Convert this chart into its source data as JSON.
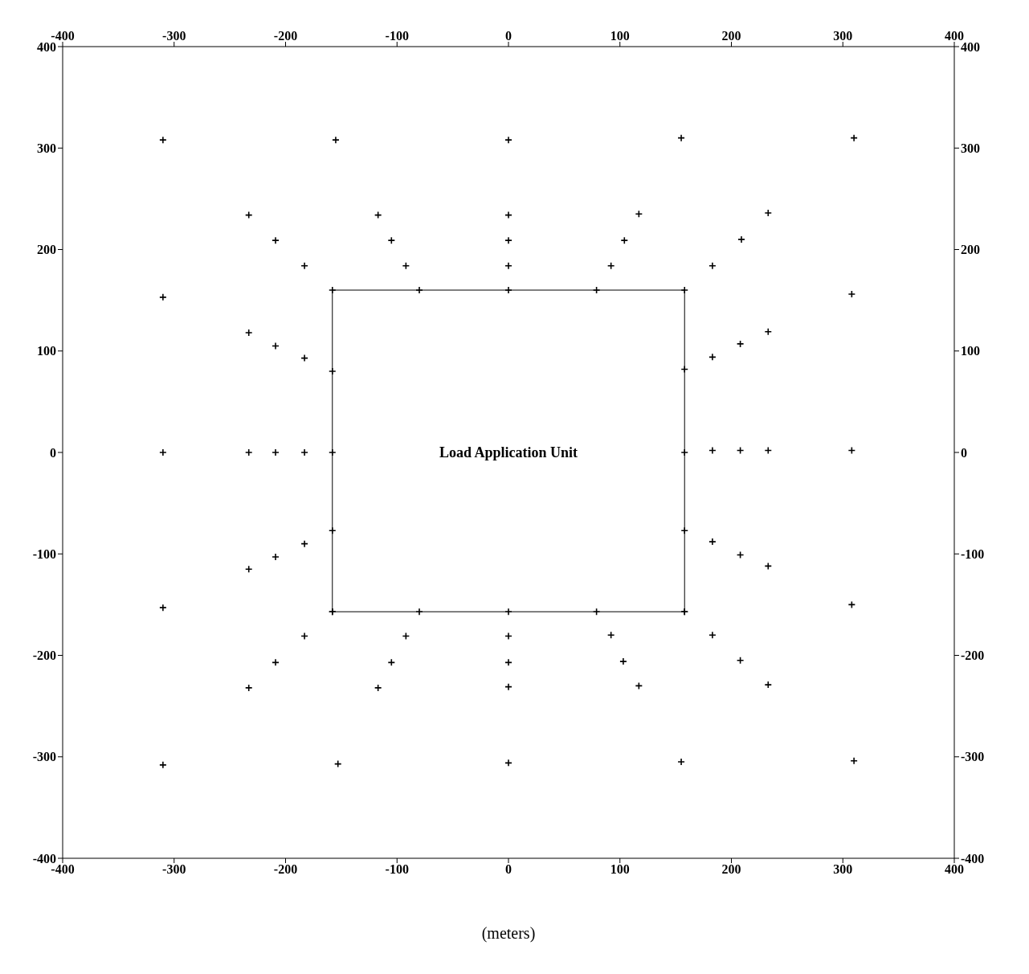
{
  "chart_data": {
    "type": "scatter",
    "xlabel": "(meters)",
    "marker": "cross",
    "xlim": [
      -400,
      400
    ],
    "xticks": [
      -400,
      -300,
      -200,
      -100,
      0,
      100,
      200,
      300,
      400
    ],
    "ylim": [
      -400,
      400
    ],
    "yticks": [
      -400,
      -300,
      -200,
      -100,
      0,
      100,
      200,
      300,
      400
    ],
    "x2lim": [
      -400,
      400
    ],
    "x2ticks": [
      -400,
      -300,
      -200,
      -100,
      0,
      100,
      200,
      300,
      400
    ],
    "y2lim": [
      -400,
      400
    ],
    "y2ticks": [
      -400,
      -300,
      -200,
      -100,
      0,
      100,
      200,
      300,
      400
    ],
    "annotations": [
      "Load Application Unit"
    ],
    "series": [
      {
        "color": "#000000",
        "x": [
          -310,
          -155,
          0,
          155,
          310,
          -233,
          -117,
          0,
          117,
          233,
          -209,
          -105,
          0,
          104,
          209,
          -183,
          -92,
          0,
          92,
          183,
          -310,
          308,
          -233,
          -209,
          -183,
          183,
          208,
          233,
          -310,
          -233,
          -209,
          -183,
          183,
          208,
          233,
          308,
          -183,
          -209,
          -233,
          183,
          208,
          233,
          -310,
          308,
          -183,
          -92,
          0,
          92,
          183,
          -209,
          -105,
          0,
          103,
          208,
          -233,
          -117,
          0,
          117,
          233,
          -310,
          -153,
          0,
          155,
          310,
          -80,
          0,
          79,
          -80,
          0,
          79,
          -158,
          -158,
          -158,
          158,
          158,
          158
        ],
        "values": [
          308,
          308,
          308,
          310,
          310,
          234,
          234,
          234,
          235,
          236,
          209,
          209,
          209,
          209,
          210,
          184,
          184,
          184,
          184,
          184,
          153,
          156,
          118,
          105,
          93,
          94,
          107,
          119,
          0,
          0,
          0,
          0,
          2,
          2,
          2,
          2,
          -90,
          -103,
          -115,
          -88,
          -101,
          -112,
          -153,
          -150,
          -181,
          -181,
          -181,
          -180,
          -180,
          -207,
          -207,
          -207,
          -206,
          -205,
          -232,
          -232,
          -231,
          -230,
          -229,
          -308,
          -307,
          -306,
          -305,
          -304,
          160,
          160,
          160,
          -157,
          -157,
          -157,
          80,
          0,
          -77,
          82,
          0,
          -77
        ]
      },
      {
        "type": "line",
        "color": "#000000",
        "marker": "cross",
        "line_style": "solid",
        "x": [
          -158,
          -158,
          158,
          158
        ],
        "values": [
          -157,
          160,
          160,
          -157
        ]
      },
      {
        "type": "line",
        "color": "#000000",
        "marker": "cross",
        "line_style": "solid",
        "x": [
          -158,
          158
        ],
        "values": [
          -157,
          -157
        ]
      }
    ]
  }
}
